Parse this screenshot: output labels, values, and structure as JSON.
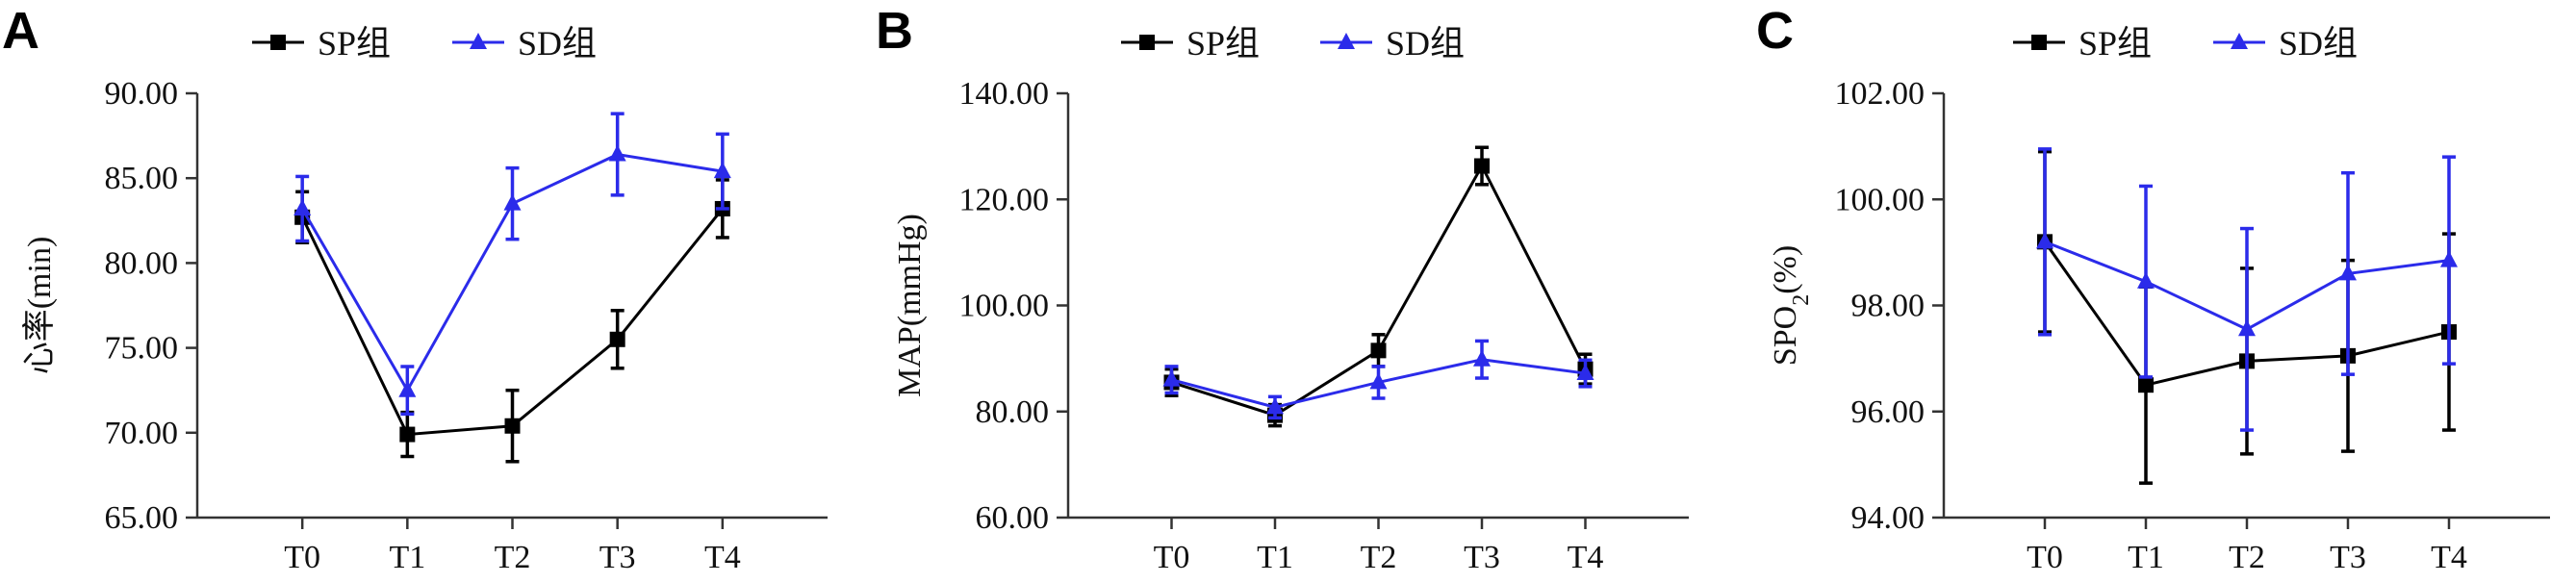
{
  "chart_data": [
    {
      "panel": "A",
      "type": "line",
      "categories": [
        "T0",
        "T1",
        "T2",
        "T3",
        "T4"
      ],
      "ylabel": "心率(min)",
      "ylim": [
        65,
        90
      ],
      "yticks": [
        "65.00",
        "70.00",
        "75.00",
        "80.00",
        "85.00",
        "90.00"
      ],
      "legend": "top",
      "grid": false,
      "series": [
        {
          "name": "SP组",
          "color": "#000000",
          "marker": "square",
          "values": [
            82.7,
            69.9,
            70.4,
            75.5,
            83.2
          ],
          "errors": [
            1.5,
            1.3,
            2.1,
            1.7,
            1.7
          ]
        },
        {
          "name": "SD组",
          "color": "#2b2bea",
          "marker": "triangle",
          "values": [
            83.2,
            72.5,
            83.5,
            86.4,
            85.4
          ],
          "errors": [
            1.9,
            1.4,
            2.1,
            2.4,
            2.2
          ]
        }
      ]
    },
    {
      "panel": "B",
      "type": "line",
      "categories": [
        "T0",
        "T1",
        "T2",
        "T3",
        "T4"
      ],
      "ylabel": "MAP(mmHg)",
      "ylim": [
        60,
        140
      ],
      "yticks": [
        "60.00",
        "80.00",
        "100.00",
        "120.00",
        "140.00"
      ],
      "legend": "top",
      "grid": false,
      "series": [
        {
          "name": "SP组",
          "color": "#000000",
          "marker": "square",
          "values": [
            85.5,
            79.3,
            91.5,
            126.3,
            88.0
          ],
          "errors": [
            2.5,
            2.0,
            3.0,
            3.5,
            2.8
          ]
        },
        {
          "name": "SD组",
          "color": "#2b2bea",
          "marker": "triangle",
          "values": [
            86.0,
            80.8,
            85.5,
            89.8,
            87.2
          ],
          "errors": [
            2.5,
            2.0,
            3.0,
            3.5,
            2.5
          ]
        }
      ]
    },
    {
      "panel": "C",
      "type": "line",
      "categories": [
        "T0",
        "T1",
        "T2",
        "T3",
        "T4"
      ],
      "ylabel": "SPO",
      "ylabel_subscript": "2",
      "ylabel_suffix": "(%)",
      "ylim": [
        94,
        102
      ],
      "yticks": [
        "94.00",
        "96.00",
        "98.00",
        "100.00",
        "102.00"
      ],
      "legend": "top",
      "grid": false,
      "series": [
        {
          "name": "SP组",
          "color": "#000000",
          "marker": "square",
          "values": [
            99.2,
            96.5,
            96.95,
            97.05,
            97.5
          ],
          "errors": [
            1.7,
            1.85,
            1.75,
            1.8,
            1.85
          ]
        },
        {
          "name": "SD组",
          "color": "#2b2bea",
          "marker": "triangle",
          "values": [
            99.2,
            98.45,
            97.55,
            98.6,
            98.85
          ],
          "errors": [
            1.75,
            1.8,
            1.9,
            1.9,
            1.95
          ]
        }
      ]
    }
  ]
}
